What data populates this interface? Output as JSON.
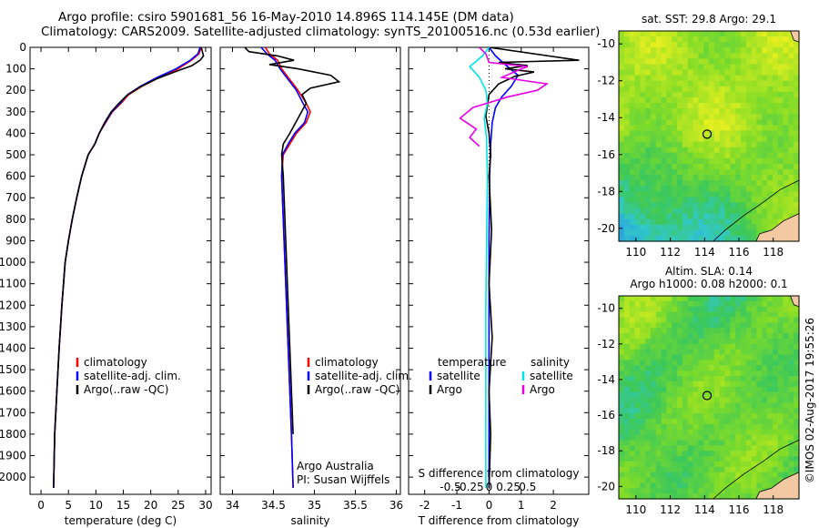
{
  "title": {
    "line1": "Argo profile: csiro 5901681_56 16-May-2010 14.896S 114.145E (DM data)",
    "line2": "Climatology: CARS2009. Satellite-adjusted climatology: synTS_20100516.nc (0.53d earlier)"
  },
  "colors": {
    "climatology": "#ff0000",
    "satellite": "#0000ff",
    "argo": "#000000",
    "sat_salinity": "#00e5e5",
    "argo_salinity": "#e600e6",
    "land": "#f3c9a4"
  },
  "side_label": "©IMOS 02-Aug-2017 19:55:26",
  "chart_data": [
    {
      "type": "line",
      "id": "temperature",
      "xlabel": "temperature (deg C)",
      "ylabel": "",
      "xlim": [
        -2,
        31
      ],
      "ylim": [
        2080,
        0
      ],
      "xticks": [
        0,
        5,
        10,
        15,
        20,
        25,
        30
      ],
      "yticks": [
        0,
        100,
        200,
        300,
        400,
        500,
        600,
        700,
        800,
        900,
        1000,
        1100,
        1200,
        1300,
        1400,
        1500,
        1600,
        1700,
        1800,
        1900,
        2000
      ],
      "legend": {
        "position": "lower-right",
        "entries": [
          "climatology",
          "satellite-adj. clim.",
          "Argo(..raw -QC)"
        ]
      },
      "series": [
        {
          "name": "climatology",
          "color": "#ff0000",
          "x": [
            29.2,
            28.8,
            27.4,
            25.0,
            21.6,
            18.5,
            16.0,
            14.6,
            13.0,
            11.8,
            10.6,
            9.8,
            8.6,
            7.4,
            6.5,
            5.7,
            5.0,
            4.4,
            3.8,
            3.3,
            2.9,
            2.5,
            2.3
          ],
          "y": [
            0,
            30,
            60,
            100,
            140,
            180,
            220,
            260,
            300,
            350,
            400,
            450,
            500,
            600,
            700,
            800,
            900,
            1000,
            1200,
            1400,
            1600,
            1800,
            2050
          ]
        },
        {
          "name": "satellite-adj. clim.",
          "color": "#0000ff",
          "x": [
            29.0,
            28.6,
            27.2,
            24.6,
            21.2,
            18.2,
            15.8,
            14.4,
            12.9,
            11.7,
            10.6,
            9.8,
            8.6,
            7.4,
            6.5,
            5.7,
            5.0,
            4.4,
            3.8,
            3.3,
            2.9,
            2.5,
            2.3
          ],
          "y": [
            0,
            30,
            60,
            100,
            140,
            180,
            220,
            260,
            300,
            350,
            400,
            450,
            500,
            600,
            700,
            800,
            900,
            1000,
            1200,
            1400,
            1600,
            1800,
            2050
          ]
        },
        {
          "name": "Argo(..raw -QC)",
          "color": "#000000",
          "x": [
            29.2,
            29.4,
            29.6,
            29.0,
            27.5,
            24.8,
            21.2,
            18.0,
            15.6,
            14.2,
            12.8,
            11.6,
            10.6,
            9.8,
            8.6,
            7.4,
            6.5,
            5.7,
            5.0,
            4.4,
            3.8,
            3.3,
            2.9,
            2.5,
            2.3
          ],
          "y": [
            0,
            20,
            40,
            60,
            85,
            110,
            145,
            185,
            225,
            260,
            300,
            350,
            400,
            450,
            500,
            600,
            700,
            800,
            900,
            1000,
            1200,
            1400,
            1600,
            1800,
            2050
          ]
        }
      ]
    },
    {
      "type": "line",
      "id": "salinity",
      "xlabel": "salinity",
      "ylabel": "",
      "xlim": [
        33.85,
        36.05
      ],
      "ylim": [
        2080,
        0
      ],
      "xticks": [
        34,
        34.5,
        35,
        35.5,
        36
      ],
      "legend": {
        "position": "lower-right",
        "entries": [
          "climatology",
          "satellite-adj. clim.",
          "Argo(..raw -QC)"
        ]
      },
      "annotations": [
        "Argo Australia",
        "PI: Susan Wijffels"
      ],
      "series": [
        {
          "name": "climatology",
          "color": "#ff0000",
          "x": [
            34.4,
            34.45,
            34.55,
            34.6,
            34.7,
            34.8,
            34.9,
            34.95,
            34.9,
            34.78,
            34.7,
            34.62,
            34.6,
            34.62,
            34.64,
            34.66,
            34.68,
            34.7,
            34.72,
            34.74
          ],
          "y": [
            0,
            30,
            60,
            100,
            150,
            200,
            260,
            300,
            350,
            400,
            450,
            500,
            600,
            800,
            1000,
            1200,
            1400,
            1600,
            1800,
            2050
          ]
        },
        {
          "name": "satellite-adj. clim.",
          "color": "#0000ff",
          "x": [
            34.35,
            34.42,
            34.52,
            34.58,
            34.68,
            34.78,
            34.86,
            34.92,
            34.88,
            34.76,
            34.68,
            34.61,
            34.6,
            34.62,
            34.64,
            34.66,
            34.68,
            34.7,
            34.72,
            34.74
          ],
          "y": [
            0,
            30,
            60,
            100,
            150,
            200,
            260,
            300,
            350,
            400,
            450,
            500,
            600,
            800,
            1000,
            1200,
            1400,
            1600,
            1800,
            2050
          ]
        },
        {
          "name": "Argo(..raw -QC)",
          "color": "#000000",
          "x": [
            34.15,
            34.2,
            34.55,
            34.75,
            34.45,
            34.8,
            35.2,
            35.3,
            34.95,
            34.85,
            34.9,
            34.8,
            34.7,
            34.62,
            34.6,
            34.62,
            34.64,
            34.66,
            34.68,
            34.7,
            34.72,
            34.74
          ],
          "y": [
            0,
            20,
            40,
            60,
            80,
            100,
            130,
            160,
            190,
            220,
            260,
            330,
            400,
            450,
            500,
            600,
            800,
            1000,
            1200,
            1400,
            1600,
            1800
          ]
        }
      ]
    },
    {
      "type": "line",
      "id": "differences",
      "xlabel": "T difference from climatology",
      "xlabel_top": "S difference from climatology",
      "xlim": [
        -2.5,
        3.1
      ],
      "ylim": [
        2080,
        0
      ],
      "xticks": [
        -2,
        -1,
        0,
        1,
        2
      ],
      "sticks": [
        -0.5,
        -0.25,
        0,
        0.25,
        0.5
      ],
      "stick_labels": [
        "-0.5",
        "-0.25",
        "0",
        "0.25",
        "0.5"
      ],
      "legend": {
        "position": "lower",
        "temperature_title": "temperature",
        "salinity_title": "salinity",
        "entries": [
          "satellite",
          "Argo",
          "satellite",
          "Argo"
        ]
      },
      "series": [
        {
          "name": "satellite",
          "group": "temperature",
          "color": "#0000ff",
          "x": [
            0.0,
            0.2,
            0.5,
            0.9,
            0.7,
            0.4,
            0.2,
            0.1,
            0.05,
            0.02,
            0.0,
            0.0,
            0.0
          ],
          "y": [
            0,
            40,
            80,
            130,
            180,
            230,
            280,
            350,
            450,
            600,
            900,
            1400,
            2050
          ]
        },
        {
          "name": "Argo",
          "group": "temperature",
          "color": "#000000",
          "x": [
            0.0,
            2.8,
            0.3,
            1.2,
            0.5,
            1.4,
            0.8,
            0.3,
            0.0,
            -0.1,
            0.0,
            0.05,
            0.0,
            0.08,
            0.0,
            0.1,
            0.0,
            0.05,
            0.0
          ],
          "y": [
            0,
            60,
            70,
            85,
            100,
            115,
            135,
            170,
            220,
            320,
            400,
            500,
            600,
            850,
            1100,
            1350,
            1600,
            1800,
            2050
          ]
        },
        {
          "name": "satellite",
          "group": "salinity",
          "color": "#00e5e5",
          "x": [
            0.0,
            -0.2,
            -0.6,
            -0.3,
            -0.1,
            -0.05,
            -0.15,
            -0.08,
            -0.05,
            -0.1,
            -0.1
          ],
          "y": [
            0,
            40,
            90,
            140,
            200,
            260,
            330,
            420,
            600,
            1200,
            2050
          ]
        },
        {
          "name": "Argo",
          "group": "salinity",
          "color": "#e600e6",
          "x": [
            -0.3,
            -0.1,
            0.0,
            1.2,
            1.0,
            0.4,
            1.8,
            1.5,
            0.6,
            -0.5,
            -0.9,
            -0.4,
            -0.6,
            -0.3
          ],
          "y": [
            0,
            30,
            70,
            90,
            100,
            140,
            170,
            200,
            230,
            280,
            330,
            380,
            420,
            460
          ]
        }
      ]
    },
    {
      "type": "heatmap",
      "id": "sst-map",
      "title": "sat. SST: 29.8  Argo: 29.1",
      "xlim": [
        109,
        119.5
      ],
      "ylim": [
        -20.7,
        -9.3
      ],
      "xticks": [
        110,
        112,
        114,
        116,
        118
      ],
      "yticks": [
        -10,
        -12,
        -14,
        -16,
        -18,
        -20
      ],
      "marker": {
        "lon": 114.145,
        "lat": -14.896
      }
    },
    {
      "type": "heatmap",
      "id": "sla-map",
      "title": "Altim. SLA: 0.14",
      "subtitle": "Argo h1000: 0.08 h2000: 0.1",
      "xlim": [
        109,
        119.5
      ],
      "ylim": [
        -20.7,
        -9.3
      ],
      "xticks": [
        110,
        112,
        114,
        116,
        118
      ],
      "yticks": [
        -10,
        -12,
        -14,
        -16,
        -18,
        -20
      ],
      "marker": {
        "lon": 114.145,
        "lat": -14.896
      }
    }
  ]
}
